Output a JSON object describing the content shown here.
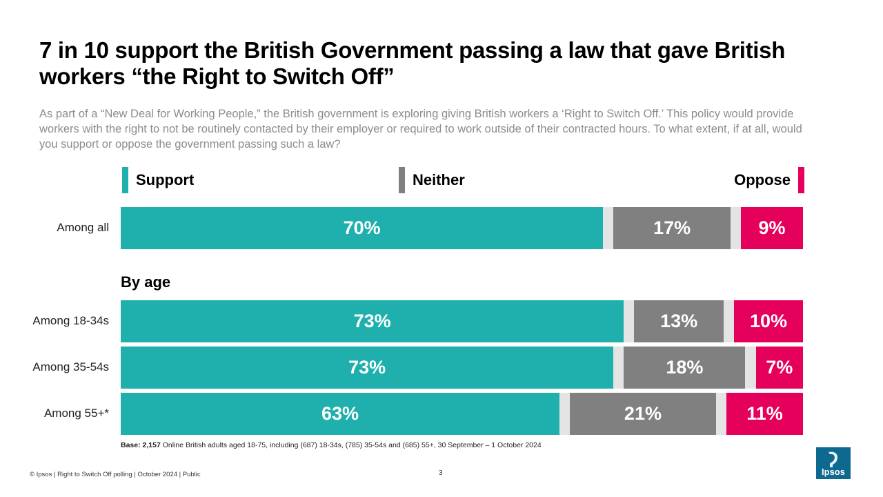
{
  "title": "7 in 10 support the British Government passing a law that gave British workers “the Right to Switch Off”",
  "subtitle": "As part of a “New Deal for Working People,” the British government is exploring giving British workers a ‘Right to Switch Off.’ This policy would provide workers with the right to not be routinely contacted by their employer or required to work outside of their contracted hours. To what extent, if at all, would you support or oppose the government passing such a law?",
  "legend": {
    "support": "Support",
    "neither": "Neither",
    "oppose": "Oppose"
  },
  "colors": {
    "support": "#1fb0ad",
    "neither": "#808080",
    "oppose": "#e5005c",
    "track": "#e4e4e4"
  },
  "section_label": "By age",
  "chart_data": {
    "type": "bar",
    "orientation": "horizontal",
    "stacked": true,
    "title": "7 in 10 support the British Government passing a law that gave British workers “the Right to Switch Off”",
    "categories": [
      "Among all",
      "Among 18-34s",
      "Among 35-54s",
      "Among 55+*"
    ],
    "series": [
      {
        "name": "Support",
        "values": [
          70,
          73,
          73,
          63
        ],
        "labels": [
          "70%",
          "73%",
          "73%",
          "63%"
        ]
      },
      {
        "name": "Neither",
        "values": [
          17,
          13,
          18,
          21
        ],
        "labels": [
          "17%",
          "13%",
          "18%",
          "21%"
        ]
      },
      {
        "name": "Oppose",
        "values": [
          9,
          10,
          7,
          11
        ],
        "labels": [
          "9%",
          "10%",
          "7%",
          "11%"
        ]
      }
    ],
    "xlim": [
      0,
      100
    ],
    "unit": "%"
  },
  "base_note": {
    "bold": "Base: 2,157",
    "text": " Online British adults aged 18-75, including (687) 18-34s, (785) 35-54s and (685) 55+, 30 September – 1 October 2024"
  },
  "footer": "© Ipsos | Right to Switch Off polling | October 2024 | Public",
  "page_number": "3",
  "logo_text": "Ipsos"
}
